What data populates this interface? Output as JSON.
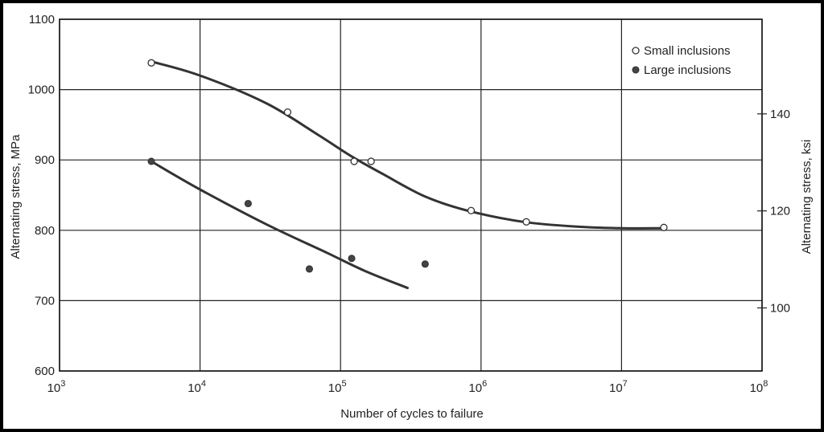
{
  "chart_data": {
    "type": "scatter",
    "title": "",
    "xlabel": "Number of cycles to failure",
    "ylabel": "Alternating stress, MPa",
    "y2label": "Alternating stress, ksi",
    "x_scale": "log",
    "xlim": [
      1000,
      100000000
    ],
    "ylim": [
      600,
      1100
    ],
    "y2lim": [
      87,
      159.5
    ],
    "x_tick_labels": [
      {
        "base": "10",
        "exp": "3",
        "value": 1000
      },
      {
        "base": "10",
        "exp": "4",
        "value": 10000
      },
      {
        "base": "10",
        "exp": "5",
        "value": 100000
      },
      {
        "base": "10",
        "exp": "6",
        "value": 1000000
      },
      {
        "base": "10",
        "exp": "7",
        "value": 10000000
      },
      {
        "base": "10",
        "exp": "8",
        "value": 100000000
      }
    ],
    "y_ticks": [
      600,
      700,
      800,
      900,
      1000,
      1100
    ],
    "y_tick_labels": [
      "600",
      "700",
      "800",
      "900",
      "1000",
      "1100"
    ],
    "y2_ticks": [
      100,
      120,
      140
    ],
    "y2_tick_labels": [
      "100",
      "120",
      "140"
    ],
    "grid": true,
    "legend_position": "top-right",
    "series": [
      {
        "name": "Small inclusions",
        "marker": "open-circle",
        "points": [
          {
            "x": 4500,
            "y": 1038
          },
          {
            "x": 42000,
            "y": 968
          },
          {
            "x": 125000,
            "y": 898
          },
          {
            "x": 165000,
            "y": 898
          },
          {
            "x": 850000,
            "y": 828
          },
          {
            "x": 2100000,
            "y": 812
          },
          {
            "x": 20000000,
            "y": 804
          }
        ],
        "fit_curve": [
          {
            "x": 4500,
            "y": 1040
          },
          {
            "x": 10000,
            "y": 1020
          },
          {
            "x": 30000,
            "y": 980
          },
          {
            "x": 70000,
            "y": 935
          },
          {
            "x": 120000,
            "y": 905
          },
          {
            "x": 200000,
            "y": 880
          },
          {
            "x": 400000,
            "y": 848
          },
          {
            "x": 800000,
            "y": 828
          },
          {
            "x": 2000000,
            "y": 812
          },
          {
            "x": 5000000,
            "y": 805
          },
          {
            "x": 10000000,
            "y": 803
          },
          {
            "x": 20000000,
            "y": 803
          }
        ]
      },
      {
        "name": "Large inclusions",
        "marker": "filled-circle",
        "points": [
          {
            "x": 4500,
            "y": 898
          },
          {
            "x": 22000,
            "y": 838
          },
          {
            "x": 60000,
            "y": 745
          },
          {
            "x": 120000,
            "y": 760
          },
          {
            "x": 400000,
            "y": 752
          }
        ],
        "fit_curve": [
          {
            "x": 4500,
            "y": 898
          },
          {
            "x": 10000,
            "y": 858
          },
          {
            "x": 30000,
            "y": 808
          },
          {
            "x": 80000,
            "y": 768
          },
          {
            "x": 150000,
            "y": 742
          },
          {
            "x": 300000,
            "y": 718
          }
        ]
      }
    ]
  }
}
